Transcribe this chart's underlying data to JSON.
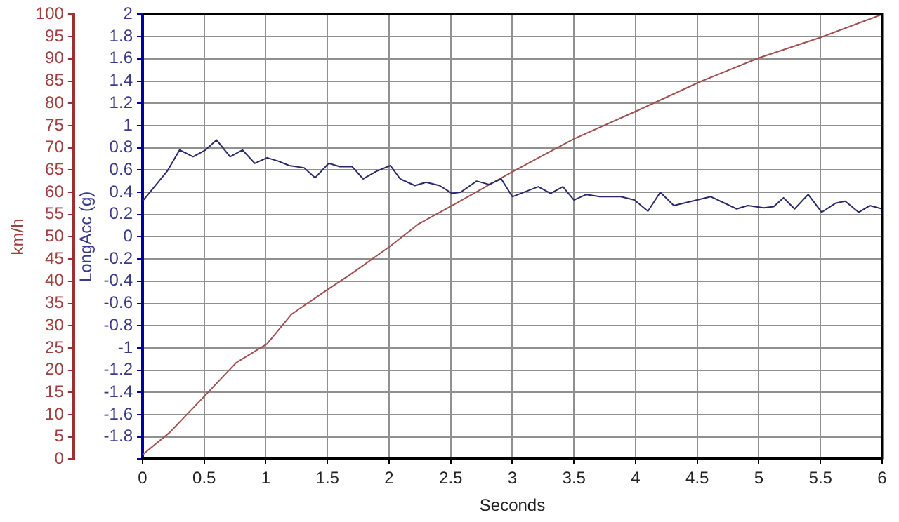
{
  "chart_data": {
    "type": "line",
    "xlabel": "Seconds",
    "ylabel": "LongAcc (g)",
    "y2label": "km/h",
    "xlim": [
      0,
      6
    ],
    "xticks": [
      0,
      0.5,
      1,
      1.5,
      2,
      2.5,
      3,
      3.5,
      4,
      4.5,
      5,
      5.5,
      6
    ],
    "ylim": [
      -2,
      2
    ],
    "yticks": [
      {
        "value": -2,
        "label": null
      },
      -1.8,
      -1.6,
      -1.4,
      -1.2,
      -1,
      -0.8,
      -0.6,
      -0.4,
      -0.2,
      0,
      0.2,
      0.4,
      0.6,
      0.8,
      1,
      1.2,
      1.4,
      1.6,
      1.8,
      2
    ],
    "y2lim": [
      0,
      100
    ],
    "y2ticks": [
      0,
      5,
      10,
      15,
      20,
      25,
      30,
      35,
      40,
      45,
      50,
      55,
      60,
      65,
      70,
      75,
      80,
      85,
      90,
      95,
      100
    ],
    "grid": true,
    "marker": "none",
    "line_style": "solid",
    "series": [
      {
        "color": "#2a2a6a",
        "axis": "y",
        "x": [
          0,
          0.2,
          0.3,
          0.41,
          0.51,
          0.6,
          0.71,
          0.81,
          0.91,
          1.01,
          1.1,
          1.19,
          1.31,
          1.4,
          1.51,
          1.6,
          1.7,
          1.79,
          1.9,
          2.01,
          2.09,
          2.21,
          2.3,
          2.41,
          2.51,
          2.58,
          2.71,
          2.81,
          2.91,
          3,
          3.21,
          3.31,
          3.41,
          3.5,
          3.6,
          3.71,
          3.88,
          3.99,
          4.1,
          4.2,
          4.31,
          4.61,
          4.82,
          4.91,
          5.04,
          5.12,
          5.2,
          5.29,
          5.4,
          5.51,
          5.62,
          5.7,
          5.81,
          5.9,
          6
        ],
        "values": [
          0.32,
          0.59,
          0.78,
          0.72,
          0.78,
          0.87,
          0.72,
          0.78,
          0.66,
          0.71,
          0.68,
          0.64,
          0.62,
          0.53,
          0.66,
          0.63,
          0.63,
          0.52,
          0.59,
          0.64,
          0.52,
          0.46,
          0.49,
          0.46,
          0.39,
          0.4,
          0.5,
          0.47,
          0.52,
          0.36,
          0.45,
          0.39,
          0.45,
          0.33,
          0.38,
          0.36,
          0.36,
          0.33,
          0.23,
          0.4,
          0.28,
          0.36,
          0.25,
          0.28,
          0.26,
          0.27,
          0.35,
          0.25,
          0.38,
          0.22,
          0.3,
          0.32,
          0.22,
          0.28,
          0.25
        ]
      },
      {
        "color": "#a05050",
        "axis": "y2",
        "x": [
          0,
          0.22,
          0.51,
          0.76,
          1.01,
          1.21,
          1.51,
          1.68,
          2.01,
          2.24,
          2.51,
          3,
          3.5,
          4.01,
          4.52,
          5,
          5.51,
          6
        ],
        "values": [
          1,
          6,
          14.4,
          21.7,
          25.9,
          32.6,
          38.3,
          41.4,
          47.9,
          52.9,
          57,
          64.6,
          72,
          78.3,
          84.8,
          90.2,
          94.9,
          100
        ]
      }
    ]
  }
}
